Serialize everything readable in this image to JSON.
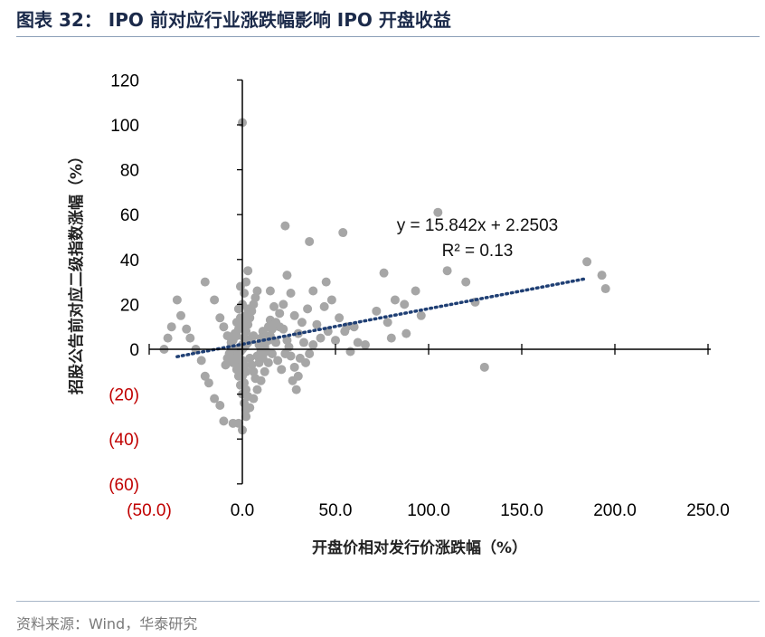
{
  "header": {
    "title": "图表 32：  IPO 前对应行业涨跌幅影响 IPO 开盘收益"
  },
  "footer": {
    "source": "资料来源：Wind，华泰研究"
  },
  "colors": {
    "points": "#a6a6a6",
    "trendline": "#1f3f74",
    "negative_labels": "#c00000",
    "axis": "#000000"
  },
  "chart_data": {
    "type": "scatter",
    "xlabel": "开盘价相对发行价涨跌幅（%）",
    "ylabel": "招股公告前对应二级指数涨幅（%）",
    "xlim": [
      -50,
      250
    ],
    "ylim": [
      -60,
      120
    ],
    "x_ticks": [
      -50,
      0,
      50,
      100,
      150,
      200,
      250
    ],
    "x_tick_labels": [
      "(50.0)",
      "0.0",
      "50.0",
      "100.0",
      "150.0",
      "200.0",
      "250.0"
    ],
    "y_ticks": [
      -60,
      -40,
      -20,
      0,
      20,
      40,
      60,
      80,
      100,
      120
    ],
    "y_tick_labels": [
      "(60)",
      "(40)",
      "(20)",
      "0",
      "20",
      "40",
      "60",
      "80",
      "100",
      "120"
    ],
    "grid": false,
    "legend": "none",
    "trendline": {
      "slope": 15.842,
      "intercept": 2.2503,
      "x_range": [
        -0.35,
        1.85
      ],
      "equation": "y = 15.842x + 2.2503",
      "r2_label": "R² = 0.13"
    },
    "points": [
      [
        0,
        101
      ],
      [
        105,
        61
      ],
      [
        54,
        52
      ],
      [
        23,
        55
      ],
      [
        36,
        48
      ],
      [
        110,
        35
      ],
      [
        93,
        26
      ],
      [
        76,
        34
      ],
      [
        120,
        30
      ],
      [
        125,
        21
      ],
      [
        193,
        33
      ],
      [
        195,
        27
      ],
      [
        185,
        39
      ],
      [
        82,
        22
      ],
      [
        87,
        20
      ],
      [
        96,
        15
      ],
      [
        72,
        17
      ],
      [
        78,
        12
      ],
      [
        88,
        7
      ],
      [
        130,
        -8
      ],
      [
        80,
        5
      ],
      [
        66,
        2
      ],
      [
        62,
        3
      ],
      [
        60,
        10
      ],
      [
        55,
        8
      ],
      [
        52,
        14
      ],
      [
        48,
        22
      ],
      [
        45,
        30
      ],
      [
        40,
        11
      ],
      [
        42,
        5
      ],
      [
        38,
        2
      ],
      [
        35,
        18
      ],
      [
        32,
        12
      ],
      [
        30,
        7
      ],
      [
        28,
        15
      ],
      [
        26,
        25
      ],
      [
        24,
        33
      ],
      [
        22,
        20
      ],
      [
        20,
        10
      ],
      [
        18,
        3
      ],
      [
        16,
        -2
      ],
      [
        14,
        -6
      ],
      [
        12,
        -10
      ],
      [
        10,
        -14
      ],
      [
        8,
        -18
      ],
      [
        6,
        -22
      ],
      [
        4,
        -26
      ],
      [
        2,
        -30
      ],
      [
        0,
        -36
      ],
      [
        -2,
        -33
      ],
      [
        -5,
        -33
      ],
      [
        -10,
        -32
      ],
      [
        -12,
        -25
      ],
      [
        -15,
        -22
      ],
      [
        -18,
        -15
      ],
      [
        -20,
        -12
      ],
      [
        -22,
        -5
      ],
      [
        -25,
        0
      ],
      [
        -28,
        5
      ],
      [
        -30,
        9
      ],
      [
        -33,
        15
      ],
      [
        -35,
        22
      ],
      [
        -38,
        10
      ],
      [
        -40,
        5
      ],
      [
        -42,
        0
      ],
      [
        -20,
        30
      ],
      [
        -15,
        22
      ],
      [
        -12,
        14
      ],
      [
        -10,
        10
      ],
      [
        -8,
        6
      ],
      [
        -6,
        3
      ],
      [
        -4,
        0
      ],
      [
        -3,
        -3
      ],
      [
        -2,
        -6
      ],
      [
        -1,
        -9
      ],
      [
        0,
        -12
      ],
      [
        1,
        -15
      ],
      [
        2,
        -18
      ],
      [
        3,
        -21
      ],
      [
        0,
        2
      ],
      [
        1,
        5
      ],
      [
        2,
        8
      ],
      [
        3,
        11
      ],
      [
        4,
        14
      ],
      [
        5,
        17
      ],
      [
        6,
        20
      ],
      [
        7,
        23
      ],
      [
        8,
        26
      ],
      [
        9,
        2
      ],
      [
        10,
        5
      ],
      [
        11,
        8
      ],
      [
        12,
        1
      ],
      [
        13,
        -1
      ],
      [
        14,
        4
      ],
      [
        15,
        6
      ],
      [
        16,
        9
      ],
      [
        0,
        20
      ],
      [
        1,
        25
      ],
      [
        2,
        30
      ],
      [
        3,
        35
      ],
      [
        -1,
        28
      ],
      [
        -2,
        18
      ],
      [
        -3,
        12
      ],
      [
        -4,
        7
      ],
      [
        -5,
        4
      ],
      [
        -6,
        1
      ],
      [
        -7,
        -2
      ],
      [
        -8,
        -4
      ],
      [
        -9,
        -7
      ],
      [
        0,
        -20
      ],
      [
        1,
        -24
      ],
      [
        2,
        -27
      ],
      [
        -1,
        -16
      ],
      [
        -2,
        -12
      ],
      [
        -3,
        -9
      ],
      [
        4,
        -4
      ],
      [
        5,
        -7
      ],
      [
        6,
        -10
      ],
      [
        7,
        -13
      ],
      [
        8,
        -3
      ],
      [
        9,
        -6
      ],
      [
        10,
        -1
      ],
      [
        11,
        -4
      ],
      [
        12,
        2
      ],
      [
        13,
        6
      ],
      [
        14,
        10
      ],
      [
        15,
        13
      ],
      [
        0,
        0
      ],
      [
        1,
        1
      ],
      [
        2,
        2
      ],
      [
        3,
        3
      ],
      [
        4,
        4
      ],
      [
        5,
        5
      ],
      [
        6,
        6
      ],
      [
        -1,
        -1
      ],
      [
        -2,
        -2
      ],
      [
        -3,
        -4
      ],
      [
        -4,
        -5
      ],
      [
        -5,
        -6
      ],
      [
        0,
        10
      ],
      [
        1,
        12
      ],
      [
        2,
        15
      ],
      [
        3,
        18
      ],
      [
        -1,
        14
      ],
      [
        -2,
        9
      ],
      [
        -3,
        6
      ],
      [
        0,
        -5
      ],
      [
        1,
        -7
      ],
      [
        2,
        -10
      ],
      [
        18,
        12
      ],
      [
        20,
        16
      ],
      [
        22,
        9
      ],
      [
        24,
        4
      ],
      [
        26,
        -3
      ],
      [
        28,
        -8
      ],
      [
        30,
        -12
      ],
      [
        34,
        -6
      ],
      [
        36,
        -2
      ],
      [
        38,
        26
      ],
      [
        44,
        19
      ],
      [
        46,
        8
      ],
      [
        50,
        4
      ],
      [
        56,
        10
      ],
      [
        58,
        -1
      ],
      [
        15,
        26
      ],
      [
        17,
        19
      ],
      [
        19,
        -5
      ],
      [
        21,
        -9
      ],
      [
        23,
        -2
      ],
      [
        25,
        1
      ],
      [
        27,
        -14
      ],
      [
        29,
        -18
      ],
      [
        31,
        -4
      ],
      [
        33,
        3
      ]
    ]
  }
}
